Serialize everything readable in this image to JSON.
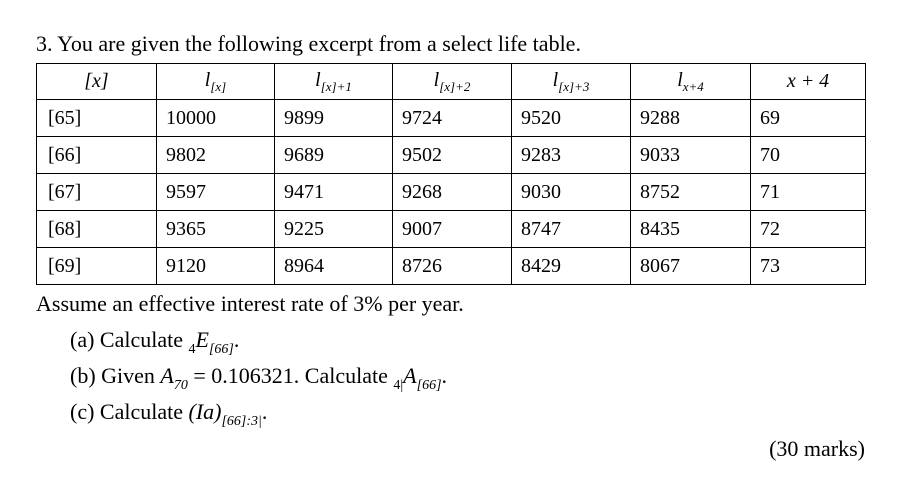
{
  "question": {
    "title": "3. You are given the following excerpt from a select life table."
  },
  "table": {
    "headers": [
      {
        "main": "[x]",
        "sub": ""
      },
      {
        "main": "l",
        "sub": "[x]"
      },
      {
        "main": "l",
        "sub": "[x]+1"
      },
      {
        "main": "l",
        "sub": "[x]+2"
      },
      {
        "main": "l",
        "sub": "[x]+3"
      },
      {
        "main": "l",
        "sub": "x+4"
      },
      {
        "main": "x + 4",
        "sub": ""
      }
    ],
    "rows": [
      [
        "[65]",
        "10000",
        "9899",
        "9724",
        "9520",
        "9288",
        "69"
      ],
      [
        "[66]",
        "9802",
        "9689",
        "9502",
        "9283",
        "9033",
        "70"
      ],
      [
        "[67]",
        "9597",
        "9471",
        "9268",
        "9030",
        "8752",
        "71"
      ],
      [
        "[68]",
        "9365",
        "9225",
        "9007",
        "8747",
        "8435",
        "72"
      ],
      [
        "[69]",
        "9120",
        "8964",
        "8726",
        "8429",
        "8067",
        "73"
      ]
    ]
  },
  "assumption": "Assume an effective interest rate of 3% per year.",
  "parts": {
    "a": {
      "label": "(a) Calculate",
      "pre": "4",
      "sym": "E",
      "sub": "[66]",
      "tail": "."
    },
    "b": {
      "label": "(b) Given",
      "sym1": "A",
      "sub1": "70",
      "eq": " = 0.106321. Calculate",
      "pre": "4|",
      "sym": "A",
      "sub": "[66]",
      "tail": "."
    },
    "c": {
      "label": "(c) Calculate",
      "sym": "(Ia)",
      "sub": "[66]:3",
      "tail": "."
    }
  },
  "marks": "(30 marks)"
}
